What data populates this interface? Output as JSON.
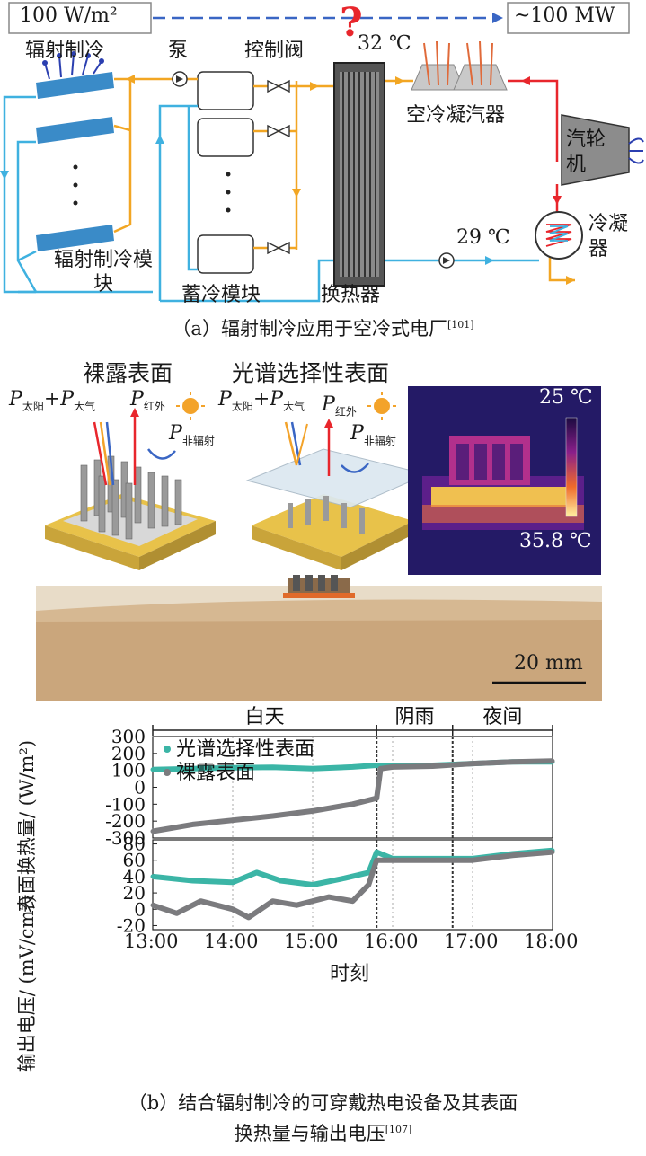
{
  "part_a": {
    "top_left_box": "100 W/m²",
    "top_right_box": "~100 MW",
    "question_mark": "?",
    "labels": {
      "radiative_cooling": "辐射制冷",
      "pump": "泵",
      "control_valve": "控制阀",
      "temp_hot": "32 ℃",
      "air_condenser": "空冷凝汽器",
      "turbine": "汽轮机",
      "condenser": "冷凝器",
      "temp_cold": "29 ℃",
      "rc_module": "辐射制冷模块",
      "storage_module": "蓄冷模块",
      "heat_exchanger": "换热器"
    },
    "caption": "（a）辐射制冷应用于空冷式电厂",
    "caption_ref": "[101]"
  },
  "part_b": {
    "bare_surface": "裸露表面",
    "selective_surface": "光谱选择性表面",
    "flux_labels": {
      "p": "P",
      "solar": "太阳",
      "atmo": "大气",
      "ir": "红外",
      "nonrad": "非辐射",
      "plus": "+"
    },
    "thermal": {
      "t_min": "25 ℃",
      "t_max": "35.8 ℃"
    },
    "scale_bar": "20 mm",
    "caption_line1": "（b）结合辐射制冷的可穿戴热电设备及其表面",
    "caption_line2": "换热量与输出电压",
    "caption_ref": "[107]"
  },
  "chart_data": [
    {
      "type": "line",
      "periods": [
        "白天",
        "阴雨",
        "夜间"
      ],
      "ylabel": "表面换热量/ (W/m²)",
      "yticks": [
        "300",
        "200",
        "100",
        "0",
        "-100",
        "-200",
        "-300"
      ],
      "ylim": [
        -300,
        300
      ],
      "xlim": [
        13,
        18
      ],
      "series": [
        {
          "name": "光谱选择性表面",
          "color": "#3bb5a6",
          "points": [
            [
              13.0,
              105
            ],
            [
              13.5,
              110
            ],
            [
              14.0,
              115
            ],
            [
              14.5,
              118
            ],
            [
              15.0,
              110
            ],
            [
              15.5,
              120
            ],
            [
              15.8,
              130
            ],
            [
              16.0,
              125
            ],
            [
              16.5,
              130
            ],
            [
              17.0,
              140
            ],
            [
              17.5,
              150
            ],
            [
              18.0,
              150
            ]
          ]
        },
        {
          "name": "裸露表面",
          "color": "#7b7b7e",
          "points": [
            [
              13.0,
              -260
            ],
            [
              13.5,
              -220
            ],
            [
              14.0,
              -195
            ],
            [
              14.5,
              -170
            ],
            [
              15.0,
              -140
            ],
            [
              15.5,
              -100
            ],
            [
              15.8,
              -65
            ],
            [
              15.85,
              110
            ],
            [
              16.0,
              120
            ],
            [
              16.5,
              125
            ],
            [
              17.0,
              140
            ],
            [
              17.5,
              150
            ],
            [
              18.0,
              155
            ]
          ]
        }
      ],
      "period_boundaries": [
        15.8,
        16.75
      ]
    },
    {
      "type": "line",
      "ylabel": "输出电压/ (mV/cm²)",
      "yticks": [
        "80",
        "60",
        "40",
        "20",
        "0",
        "-20"
      ],
      "ylim": [
        -25,
        85
      ],
      "xlim": [
        13,
        18
      ],
      "xticks": [
        "13:00",
        "14:00",
        "15:00",
        "16:00",
        "17:00",
        "18:00"
      ],
      "xlabel": "时刻",
      "series": [
        {
          "name": "光谱选择性表面",
          "color": "#3bb5a6",
          "points": [
            [
              13.0,
              40
            ],
            [
              13.5,
              35
            ],
            [
              14.0,
              33
            ],
            [
              14.3,
              45
            ],
            [
              14.6,
              35
            ],
            [
              15.0,
              30
            ],
            [
              15.4,
              38
            ],
            [
              15.7,
              45
            ],
            [
              15.8,
              70
            ],
            [
              16.0,
              62
            ],
            [
              16.5,
              62
            ],
            [
              17.0,
              62
            ],
            [
              17.5,
              68
            ],
            [
              18.0,
              72
            ]
          ]
        },
        {
          "name": "裸露表面",
          "color": "#7b7b7e",
          "points": [
            [
              13.0,
              5
            ],
            [
              13.3,
              -5
            ],
            [
              13.6,
              10
            ],
            [
              14.0,
              0
            ],
            [
              14.2,
              -10
            ],
            [
              14.5,
              10
            ],
            [
              14.8,
              5
            ],
            [
              15.2,
              15
            ],
            [
              15.5,
              10
            ],
            [
              15.7,
              30
            ],
            [
              15.8,
              60
            ],
            [
              16.0,
              60
            ],
            [
              16.5,
              60
            ],
            [
              17.0,
              60
            ],
            [
              17.5,
              66
            ],
            [
              18.0,
              70
            ]
          ]
        }
      ]
    }
  ]
}
